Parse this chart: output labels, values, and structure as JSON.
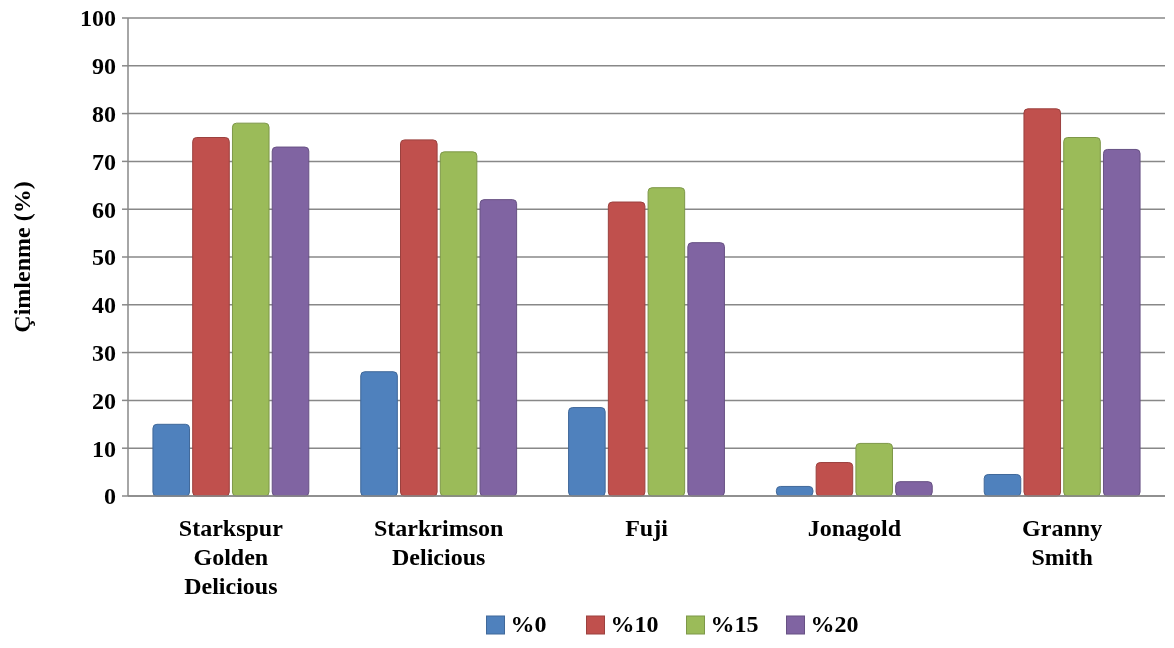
{
  "chart_data": {
    "type": "bar",
    "ylabel": "Çimlenme (%)",
    "categories": [
      "Starkspur Golden Delicious",
      "Starkrimson Delicious",
      "Fuji",
      "Jonagold",
      "Granny Smith"
    ],
    "series": [
      {
        "name": "%0",
        "color": "#4f81bd",
        "values": [
          15,
          26,
          18.5,
          2,
          4.5
        ]
      },
      {
        "name": "%10",
        "color": "#c0504d",
        "values": [
          75,
          74.5,
          61.5,
          7,
          81
        ]
      },
      {
        "name": "%15",
        "color": "#9bbb59",
        "values": [
          78,
          72,
          64.5,
          11,
          75
        ]
      },
      {
        "name": "%20",
        "color": "#8064a2",
        "values": [
          73,
          62,
          53,
          3,
          72.5
        ]
      }
    ],
    "ylim": [
      0,
      100
    ],
    "yticks": [
      0,
      10,
      20,
      30,
      40,
      50,
      60,
      70,
      80,
      90,
      100
    ],
    "grid": "y",
    "legend": "bottom"
  }
}
